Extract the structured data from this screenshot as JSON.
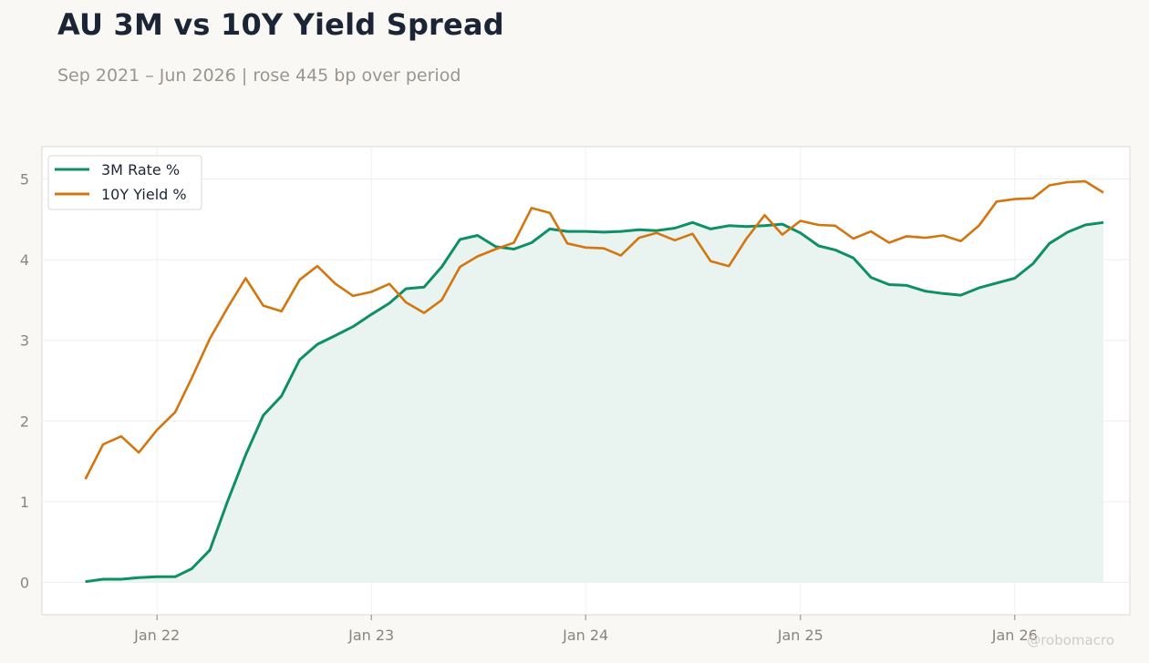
{
  "title": "AU 3M vs 10Y Yield Spread",
  "subtitle": "Sep 2021 – Jun 2026 | rose 445 bp over period",
  "watermark": "@robomacro",
  "colors": {
    "rate3m": "#0f8f66",
    "yield10y": "#d4760f",
    "fill": "#e9f4f0",
    "grid": "#eeeeee",
    "frame": "#dcd8d0"
  },
  "chart_data": {
    "type": "line",
    "title": "AU 3M vs 10Y Yield Spread",
    "x_range": [
      "2021-06-19",
      "2026-07-16"
    ],
    "ylim": [
      -0.4,
      5.4
    ],
    "y_ticks": [
      0,
      1,
      2,
      3,
      4,
      5
    ],
    "x_ticks": [
      {
        "date": "2022-01-01",
        "label": "Jan 22"
      },
      {
        "date": "2023-01-01",
        "label": "Jan 23"
      },
      {
        "date": "2024-01-01",
        "label": "Jan 24"
      },
      {
        "date": "2025-01-01",
        "label": "Jan 25"
      },
      {
        "date": "2026-01-01",
        "label": "Jan 26"
      }
    ],
    "grid": true,
    "legend_position": "top-left",
    "dates": [
      "2021-09",
      "2021-10",
      "2021-11",
      "2021-12",
      "2022-01",
      "2022-02",
      "2022-03",
      "2022-04",
      "2022-05",
      "2022-06",
      "2022-07",
      "2022-08",
      "2022-09",
      "2022-10",
      "2022-11",
      "2022-12",
      "2023-01",
      "2023-02",
      "2023-03",
      "2023-04",
      "2023-05",
      "2023-06",
      "2023-07",
      "2023-08",
      "2023-09",
      "2023-10",
      "2023-11",
      "2023-12",
      "2024-01",
      "2024-02",
      "2024-03",
      "2024-04",
      "2024-05",
      "2024-06",
      "2024-07",
      "2024-08",
      "2024-09",
      "2024-10",
      "2024-11",
      "2024-12",
      "2025-01",
      "2025-02",
      "2025-03",
      "2025-04",
      "2025-05",
      "2025-06",
      "2025-07",
      "2025-08",
      "2025-09",
      "2025-10",
      "2025-11",
      "2025-12",
      "2026-01",
      "2026-02",
      "2026-03",
      "2026-04",
      "2026-05",
      "2026-06"
    ],
    "series": [
      {
        "name": "3M Rate %",
        "fill": true,
        "values": [
          0.01,
          0.04,
          0.04,
          0.06,
          0.07,
          0.07,
          0.17,
          0.4,
          1.0,
          1.58,
          2.07,
          2.31,
          2.76,
          2.95,
          3.06,
          3.17,
          3.32,
          3.46,
          3.64,
          3.66,
          3.91,
          4.25,
          4.3,
          4.16,
          4.13,
          4.21,
          4.38,
          4.35,
          4.35,
          4.34,
          4.35,
          4.37,
          4.36,
          4.39,
          4.46,
          4.38,
          4.42,
          4.41,
          4.42,
          4.44,
          4.33,
          4.17,
          4.12,
          4.02,
          3.78,
          3.69,
          3.68,
          3.61,
          3.58,
          3.56,
          3.65,
          3.71,
          3.77,
          3.95,
          4.2,
          4.34,
          4.43,
          4.46
        ]
      },
      {
        "name": "10Y Yield %",
        "fill": false,
        "values": [
          1.28,
          1.71,
          1.81,
          1.61,
          1.89,
          2.11,
          2.53,
          3.02,
          3.4,
          3.77,
          3.43,
          3.36,
          3.75,
          3.92,
          3.7,
          3.55,
          3.6,
          3.7,
          3.47,
          3.34,
          3.5,
          3.91,
          4.04,
          4.13,
          4.21,
          4.64,
          4.58,
          4.2,
          4.15,
          4.14,
          4.05,
          4.27,
          4.33,
          4.24,
          4.32,
          3.98,
          3.92,
          4.26,
          4.55,
          4.31,
          4.48,
          4.43,
          4.42,
          4.26,
          4.35,
          4.21,
          4.29,
          4.27,
          4.3,
          4.23,
          4.42,
          4.72,
          4.75,
          4.76,
          4.92,
          4.96,
          4.97,
          4.83
        ]
      }
    ]
  }
}
